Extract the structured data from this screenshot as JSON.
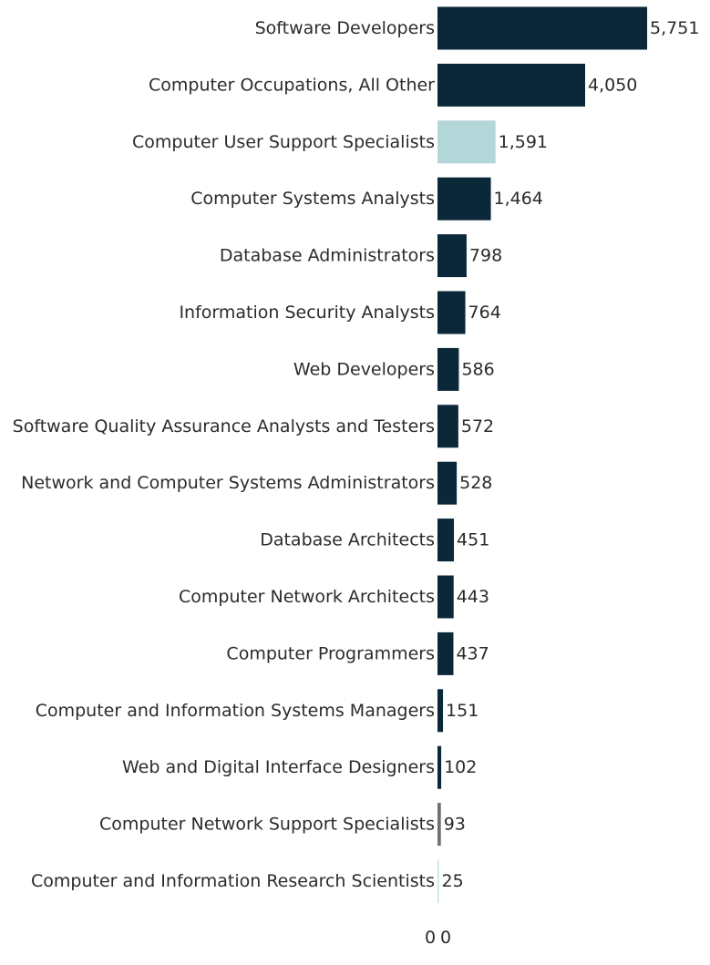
{
  "chart_data": {
    "type": "bar",
    "orientation": "horizontal",
    "title": "",
    "xlabel": "",
    "ylabel": "",
    "grid": false,
    "legend": "none",
    "xlim": [
      0,
      6000
    ],
    "axis_ticks": [
      "0",
      "0"
    ],
    "colors": {
      "dark": "#0b2838",
      "light": "#b3d6d9",
      "gray": "#707070",
      "faint": "#c5e0e3"
    },
    "bars": [
      {
        "category": "Software Developers",
        "value": 5751,
        "label": "5,751",
        "color": "#0b2838"
      },
      {
        "category": "Computer Occupations, All Other",
        "value": 4050,
        "label": "4,050",
        "color": "#0b2838"
      },
      {
        "category": "Computer User Support Specialists",
        "value": 1591,
        "label": "1,591",
        "color": "#b3d6d9"
      },
      {
        "category": "Computer Systems Analysts",
        "value": 1464,
        "label": "1,464",
        "color": "#0b2838"
      },
      {
        "category": "Database Administrators",
        "value": 798,
        "label": "798",
        "color": "#0b2838"
      },
      {
        "category": "Information Security Analysts",
        "value": 764,
        "label": "764",
        "color": "#0b2838"
      },
      {
        "category": "Web Developers",
        "value": 586,
        "label": "586",
        "color": "#0b2838"
      },
      {
        "category": "Software Quality Assurance Analysts and Testers",
        "value": 572,
        "label": "572",
        "color": "#0b2838"
      },
      {
        "category": "Network and Computer Systems Administrators",
        "value": 528,
        "label": "528",
        "color": "#0b2838"
      },
      {
        "category": "Database Architects",
        "value": 451,
        "label": "451",
        "color": "#0b2838"
      },
      {
        "category": "Computer Network Architects",
        "value": 443,
        "label": "443",
        "color": "#0b2838"
      },
      {
        "category": "Computer Programmers",
        "value": 437,
        "label": "437",
        "color": "#0b2838"
      },
      {
        "category": "Computer and Information Systems Managers",
        "value": 151,
        "label": "151",
        "color": "#0b2838"
      },
      {
        "category": "Web and Digital Interface Designers",
        "value": 102,
        "label": "102",
        "color": "#0b2838"
      },
      {
        "category": "Computer Network Support Specialists",
        "value": 93,
        "label": "93",
        "color": "#707070"
      },
      {
        "category": "Computer and Information Research Scientists",
        "value": 25,
        "label": "25",
        "color": "#c5e0e3"
      }
    ]
  }
}
